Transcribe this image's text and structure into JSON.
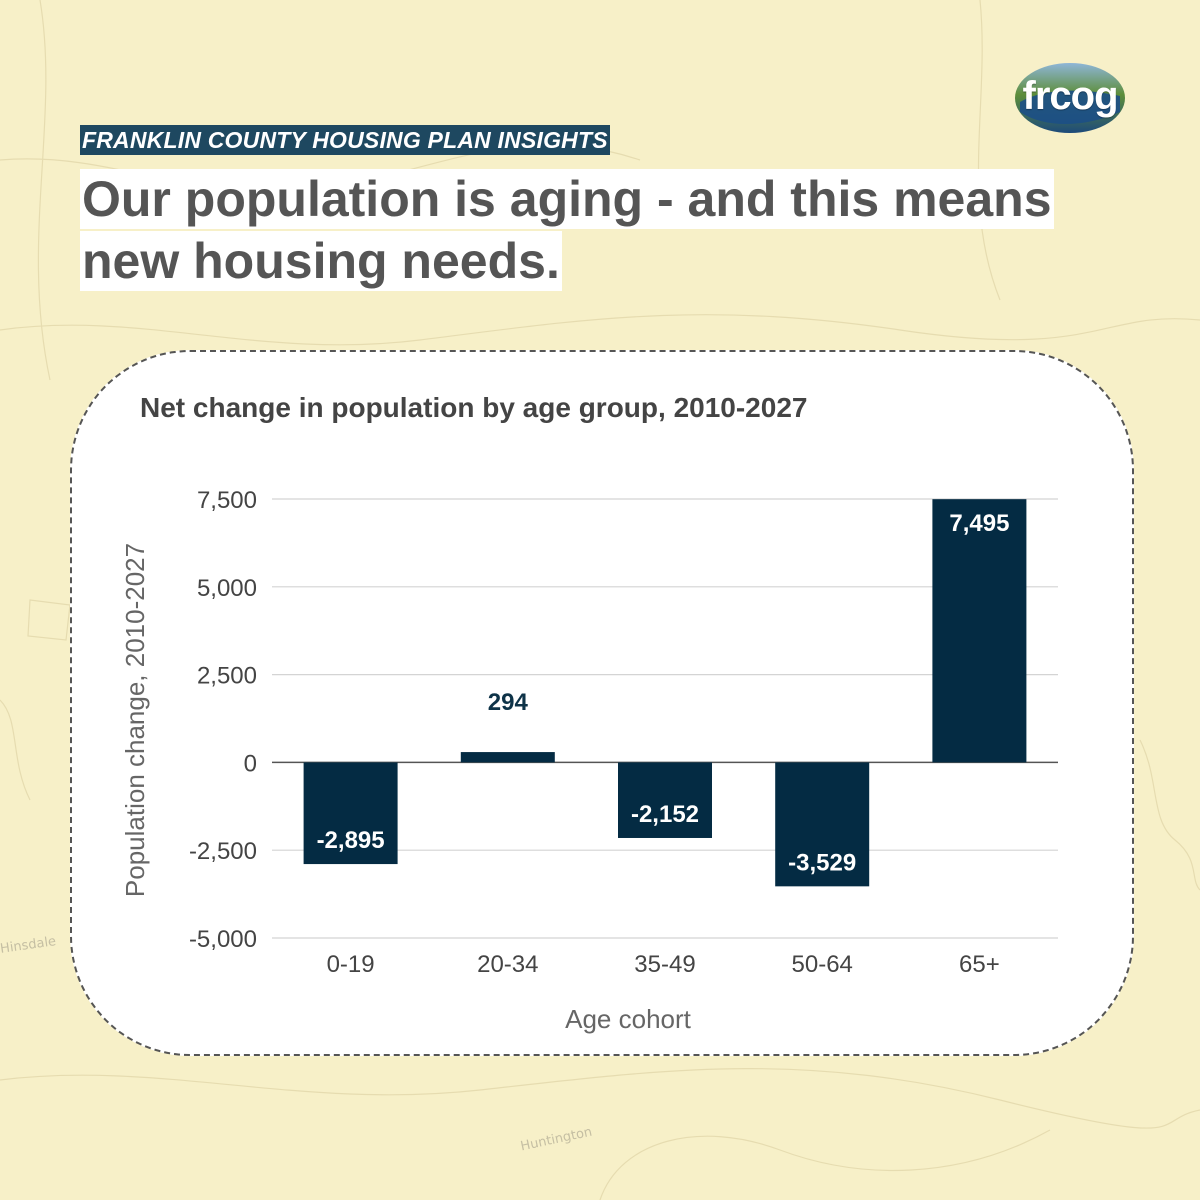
{
  "background": {
    "map_labels": [
      "Hinsdale",
      "Huntington"
    ]
  },
  "logo": {
    "text": "frcog"
  },
  "eyebrow": "FRANKLIN COUNTY HOUSING PLAN INSIGHTS",
  "headline": "Our population is aging - and this means new housing needs.",
  "colors": {
    "bar": "#042b43",
    "eyebrow_bg": "#1e4860",
    "grid": "#d4d4d4",
    "label_outside": "#0e3348"
  },
  "chart_data": {
    "type": "bar",
    "title": "Net change in population by age group, 2010-2027",
    "xlabel": "Age cohort",
    "ylabel": "Population change, 2010-2027",
    "categories": [
      "0-19",
      "20-34",
      "35-49",
      "50-64",
      "65+"
    ],
    "values": [
      -2895,
      294,
      -2152,
      -3529,
      7495
    ],
    "value_labels": [
      "-2,895",
      "294",
      "-2,152",
      "-3,529",
      "7,495"
    ],
    "ylim": [
      -5000,
      7500
    ],
    "yticks": [
      7500,
      5000,
      2500,
      0,
      -2500,
      -5000
    ],
    "ytick_labels": [
      "7,500",
      "5,000",
      "2,500",
      "0",
      "-2,500",
      "-5,000"
    ],
    "grid": true,
    "legend": false
  }
}
